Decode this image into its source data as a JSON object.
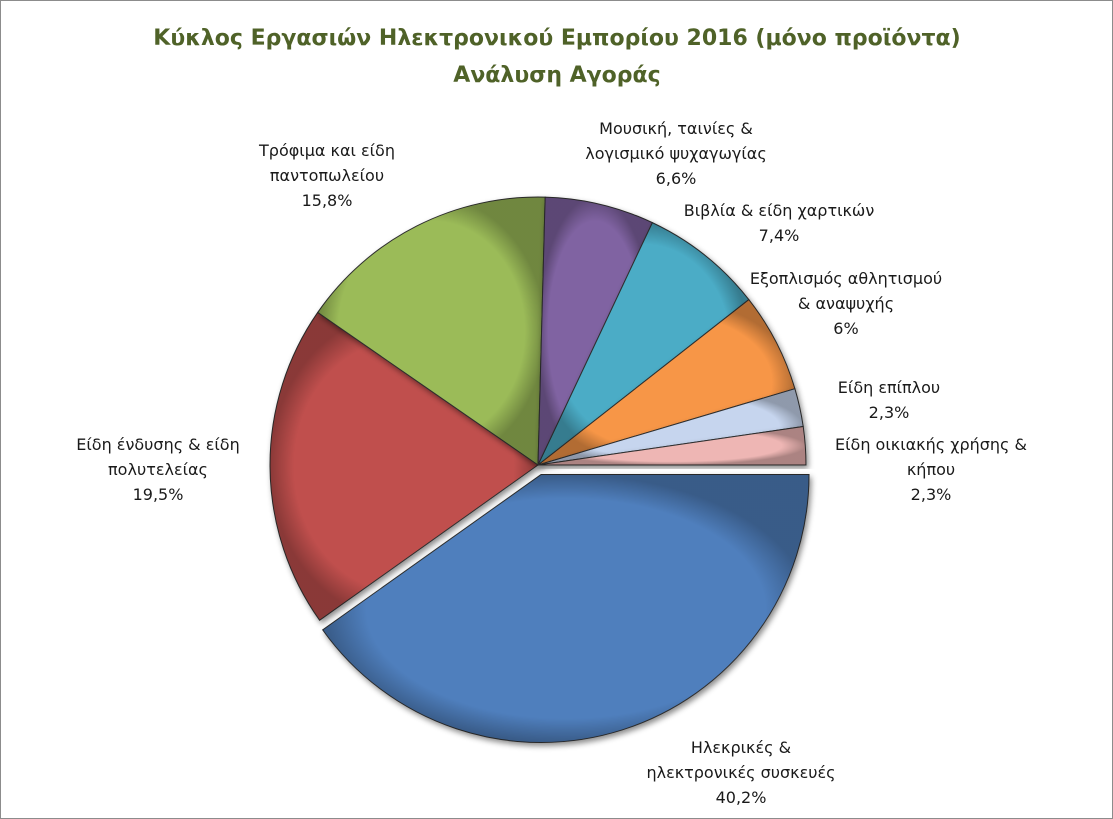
{
  "chart_data": {
    "type": "pie",
    "title": "Κύκλος Εργασιών Ηλεκτρονικού Εμπορίου 2016 (μόνο προϊόντα)",
    "subtitle": "Ανάλυση Αγοράς",
    "slices": [
      {
        "label_lines": [
          "Ηλεκρικές &",
          "ηλεκτρονικές συσκευές"
        ],
        "value": 40.2,
        "value_label": "40,2%",
        "color": "#4f7fbd"
      },
      {
        "label_lines": [
          "Είδη ένδυσης & είδη",
          "πολυτελείας"
        ],
        "value": 19.5,
        "value_label": "19,5%",
        "color": "#c0504d"
      },
      {
        "label_lines": [
          "Τρόφιμα και είδη",
          "παντοπωλείου"
        ],
        "value": 15.8,
        "value_label": "15,8%",
        "color": "#9bbb59"
      },
      {
        "label_lines": [
          "Μουσική, ταινίες &",
          "λογισμικό ψυχαγωγίας"
        ],
        "value": 6.6,
        "value_label": "6,6%",
        "color": "#8064a2"
      },
      {
        "label_lines": [
          "Βιβλία & είδη χαρτικών"
        ],
        "value": 7.4,
        "value_label": "7,4%",
        "color": "#4bacc6"
      },
      {
        "label_lines": [
          "Εξοπλισμός αθλητισμού",
          "& αναψυχής"
        ],
        "value": 6.0,
        "value_label": "6%",
        "color": "#f79646"
      },
      {
        "label_lines": [
          "Είδη επίπλου"
        ],
        "value": 2.3,
        "value_label": "2,3%",
        "color": "#c6d5ee"
      },
      {
        "label_lines": [
          "Είδη οικιακής χρήσης &",
          "κήπου"
        ],
        "value": 2.3,
        "value_label": "2,3%",
        "color": "#eeb6b4"
      }
    ]
  }
}
